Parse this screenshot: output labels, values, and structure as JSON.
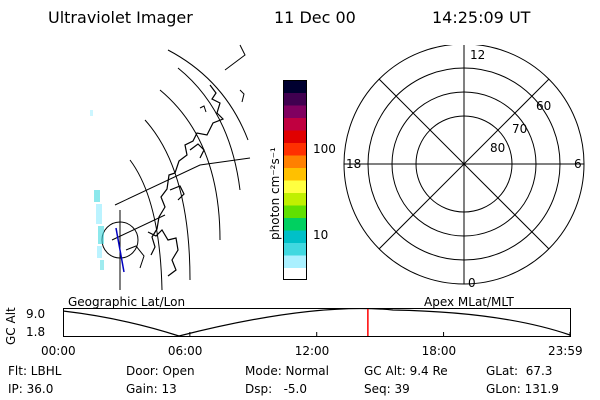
{
  "header": {
    "instrument": "Ultraviolet Imager",
    "date": "11 Dec 00",
    "time": "14:25:09 UT"
  },
  "colorbar": {
    "unit_label": "photon cm⁻²s⁻¹",
    "ticks": [
      {
        "label": "100",
        "value": 100
      },
      {
        "label": "10",
        "value": 10
      }
    ],
    "colors": [
      "#ffffff",
      "#aaf0ff",
      "#40d8e0",
      "#00c0c8",
      "#00d060",
      "#60e000",
      "#c0f000",
      "#ffff40",
      "#ffc000",
      "#ff8000",
      "#ff3000",
      "#e00000",
      "#c00040",
      "#800060",
      "#400050",
      "#000030"
    ]
  },
  "polar_plot": {
    "mlt_labels": [
      {
        "label": "12",
        "mlt": 12
      },
      {
        "label": "18",
        "mlt": 18
      },
      {
        "label": "6",
        "mlt": 6
      },
      {
        "label": "0",
        "mlt": 0
      }
    ],
    "lat_labels": [
      {
        "label": "60",
        "mlat": 60
      },
      {
        "label": "70",
        "mlat": 70
      },
      {
        "label": "80",
        "mlat": 80
      }
    ]
  },
  "timeline": {
    "left_title": "Geographic Lat/Lon",
    "right_title": "Apex MLat/MLT",
    "y_axis_label": "GC Alt",
    "y_ticks": [
      "9.0",
      "1.8"
    ],
    "x_ticks": [
      {
        "label": "00:00",
        "hour": 0
      },
      {
        "label": "06:00",
        "hour": 6
      },
      {
        "label": "12:00",
        "hour": 12
      },
      {
        "label": "18:00",
        "hour": 18
      },
      {
        "label": "23:59",
        "hour": 23.98
      }
    ],
    "current_hour": 14.42,
    "marker_color": "#ff0000"
  },
  "status": {
    "flt": "Flt: LBHL",
    "ip": "IP: 36.0",
    "door": "Door: Open",
    "gain": "Gain: 13",
    "mode": "Mode: Normal",
    "dsp": "Dsp:   -5.0",
    "gc_alt": "GC Alt: 9.4 Re",
    "seq": "Seq: 39",
    "glat": "GLat:  67.3",
    "glon": "GLon: 131.9"
  }
}
